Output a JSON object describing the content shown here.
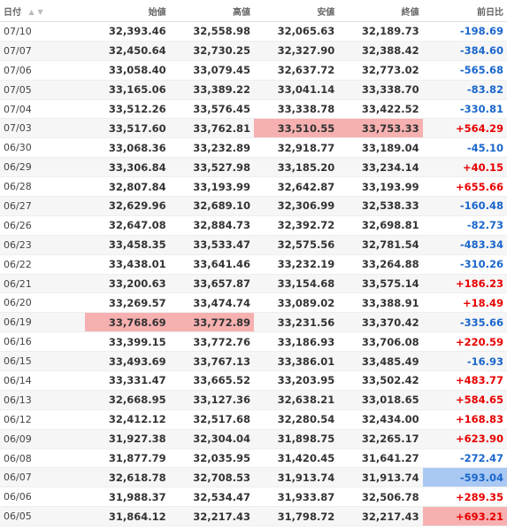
{
  "header": {
    "date": "日付",
    "open": "始値",
    "high": "高値",
    "low": "安値",
    "close": "終値",
    "change": "前日比",
    "sort_up": "▲",
    "sort_down": "▼"
  },
  "rows": [
    {
      "date": "07/10",
      "open": "32,393.46",
      "high": "32,558.98",
      "low": "32,065.63",
      "close": "32,189.73",
      "change": "-198.69",
      "dir": "neg"
    },
    {
      "date": "07/07",
      "open": "32,450.64",
      "high": "32,730.25",
      "low": "32,327.90",
      "close": "32,388.42",
      "change": "-384.60",
      "dir": "neg"
    },
    {
      "date": "07/06",
      "open": "33,058.40",
      "high": "33,079.45",
      "low": "32,637.72",
      "close": "32,773.02",
      "change": "-565.68",
      "dir": "neg"
    },
    {
      "date": "07/05",
      "open": "33,165.06",
      "high": "33,389.22",
      "low": "33,041.14",
      "close": "33,338.70",
      "change": "-83.82",
      "dir": "neg"
    },
    {
      "date": "07/04",
      "open": "33,512.26",
      "high": "33,576.45",
      "low": "33,338.78",
      "close": "33,422.52",
      "change": "-330.81",
      "dir": "neg"
    },
    {
      "date": "07/03",
      "open": "33,517.60",
      "high": "33,762.81",
      "low": "33,510.55",
      "close": "33,753.33",
      "change": "+564.29",
      "dir": "pos",
      "hl": {
        "low": "red",
        "close": "red"
      }
    },
    {
      "date": "06/30",
      "open": "33,068.36",
      "high": "33,232.89",
      "low": "32,918.77",
      "close": "33,189.04",
      "change": "-45.10",
      "dir": "neg"
    },
    {
      "date": "06/29",
      "open": "33,306.84",
      "high": "33,527.98",
      "low": "33,185.20",
      "close": "33,234.14",
      "change": "+40.15",
      "dir": "pos"
    },
    {
      "date": "06/28",
      "open": "32,807.84",
      "high": "33,193.99",
      "low": "32,642.87",
      "close": "33,193.99",
      "change": "+655.66",
      "dir": "pos"
    },
    {
      "date": "06/27",
      "open": "32,629.96",
      "high": "32,689.10",
      "low": "32,306.99",
      "close": "32,538.33",
      "change": "-160.48",
      "dir": "neg"
    },
    {
      "date": "06/26",
      "open": "32,647.08",
      "high": "32,884.73",
      "low": "32,392.72",
      "close": "32,698.81",
      "change": "-82.73",
      "dir": "neg"
    },
    {
      "date": "06/23",
      "open": "33,458.35",
      "high": "33,533.47",
      "low": "32,575.56",
      "close": "32,781.54",
      "change": "-483.34",
      "dir": "neg"
    },
    {
      "date": "06/22",
      "open": "33,438.01",
      "high": "33,641.46",
      "low": "33,232.19",
      "close": "33,264.88",
      "change": "-310.26",
      "dir": "neg"
    },
    {
      "date": "06/21",
      "open": "33,200.63",
      "high": "33,657.87",
      "low": "33,154.68",
      "close": "33,575.14",
      "change": "+186.23",
      "dir": "pos"
    },
    {
      "date": "06/20",
      "open": "33,269.57",
      "high": "33,474.74",
      "low": "33,089.02",
      "close": "33,388.91",
      "change": "+18.49",
      "dir": "pos"
    },
    {
      "date": "06/19",
      "open": "33,768.69",
      "high": "33,772.89",
      "low": "33,231.56",
      "close": "33,370.42",
      "change": "-335.66",
      "dir": "neg",
      "hl": {
        "open": "red",
        "high": "red"
      }
    },
    {
      "date": "06/16",
      "open": "33,399.15",
      "high": "33,772.76",
      "low": "33,186.93",
      "close": "33,706.08",
      "change": "+220.59",
      "dir": "pos"
    },
    {
      "date": "06/15",
      "open": "33,493.69",
      "high": "33,767.13",
      "low": "33,386.01",
      "close": "33,485.49",
      "change": "-16.93",
      "dir": "neg"
    },
    {
      "date": "06/14",
      "open": "33,331.47",
      "high": "33,665.52",
      "low": "33,203.95",
      "close": "33,502.42",
      "change": "+483.77",
      "dir": "pos"
    },
    {
      "date": "06/13",
      "open": "32,668.95",
      "high": "33,127.36",
      "low": "32,638.21",
      "close": "33,018.65",
      "change": "+584.65",
      "dir": "pos"
    },
    {
      "date": "06/12",
      "open": "32,412.12",
      "high": "32,517.68",
      "low": "32,280.54",
      "close": "32,434.00",
      "change": "+168.83",
      "dir": "pos"
    },
    {
      "date": "06/09",
      "open": "31,927.38",
      "high": "32,304.04",
      "low": "31,898.75",
      "close": "32,265.17",
      "change": "+623.90",
      "dir": "pos"
    },
    {
      "date": "06/08",
      "open": "31,877.79",
      "high": "32,035.95",
      "low": "31,420.45",
      "close": "31,641.27",
      "change": "-272.47",
      "dir": "neg"
    },
    {
      "date": "06/07",
      "open": "32,618.78",
      "high": "32,708.53",
      "low": "31,913.74",
      "close": "31,913.74",
      "change": "-593.04",
      "dir": "neg",
      "hl": {
        "change": "blue"
      }
    },
    {
      "date": "06/06",
      "open": "31,988.37",
      "high": "32,534.47",
      "low": "31,933.87",
      "close": "32,506.78",
      "change": "+289.35",
      "dir": "pos"
    },
    {
      "date": "06/05",
      "open": "31,864.12",
      "high": "32,217.43",
      "low": "31,798.72",
      "close": "32,217.43",
      "change": "+693.21",
      "dir": "pos",
      "hl": {
        "change": "red"
      }
    }
  ]
}
